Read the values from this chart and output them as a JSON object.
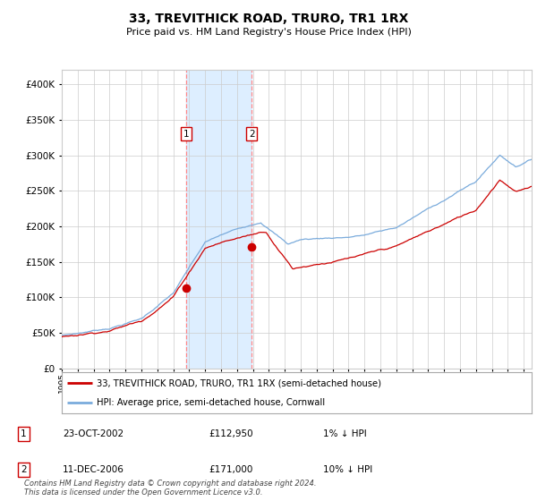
{
  "title": "33, TREVITHICK ROAD, TRURO, TR1 1RX",
  "subtitle": "Price paid vs. HM Land Registry's House Price Index (HPI)",
  "legend_line1": "33, TREVITHICK ROAD, TRURO, TR1 1RX (semi-detached house)",
  "legend_line2": "HPI: Average price, semi-detached house, Cornwall",
  "footer": "Contains HM Land Registry data © Crown copyright and database right 2024.\nThis data is licensed under the Open Government Licence v3.0.",
  "sale1_date": "23-OCT-2002",
  "sale1_price": "£112,950",
  "sale1_hpi": "1% ↓ HPI",
  "sale2_date": "11-DEC-2006",
  "sale2_price": "£171,000",
  "sale2_hpi": "10% ↓ HPI",
  "hpi_color": "#7aabdc",
  "price_color": "#cc0000",
  "sale_dot_color": "#cc0000",
  "dashed_line_color": "#ff8888",
  "shading_color": "#ddeeff",
  "background_color": "#ffffff",
  "grid_color": "#cccccc",
  "ylim": [
    0,
    420000
  ],
  "yticks": [
    0,
    50000,
    100000,
    150000,
    200000,
    250000,
    300000,
    350000,
    400000
  ],
  "xlim": [
    1995.0,
    2024.5
  ],
  "xticks": [
    1995,
    1996,
    1997,
    1998,
    1999,
    2000,
    2001,
    2002,
    2003,
    2004,
    2005,
    2006,
    2007,
    2008,
    2009,
    2010,
    2011,
    2012,
    2013,
    2014,
    2015,
    2016,
    2017,
    2018,
    2019,
    2020,
    2021,
    2022,
    2023,
    2024
  ],
  "sale1_year": 2002.79,
  "sale2_year": 2006.92,
  "sale1_price_val": 112950,
  "sale2_price_val": 171000
}
